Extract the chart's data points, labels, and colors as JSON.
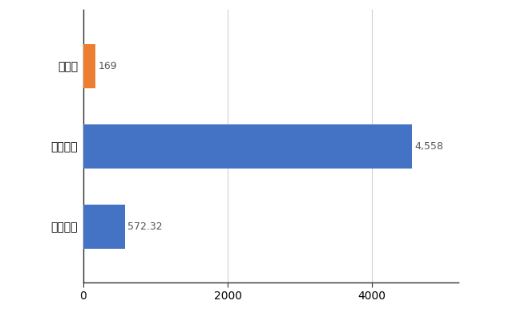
{
  "categories": [
    "全国平均",
    "全国最大",
    "島根県"
  ],
  "values": [
    572.32,
    4558,
    169
  ],
  "bar_colors": [
    "#4472c4",
    "#4472c4",
    "#ed7d31"
  ],
  "value_labels": [
    "572.32",
    "4,558",
    "169"
  ],
  "xlim": [
    0,
    5200
  ],
  "xticks": [
    0,
    2000,
    4000
  ],
  "background_color": "#ffffff",
  "grid_color": "#d0d0d0",
  "bar_height": 0.55,
  "label_fontsize": 10,
  "tick_fontsize": 10,
  "value_fontsize": 9
}
